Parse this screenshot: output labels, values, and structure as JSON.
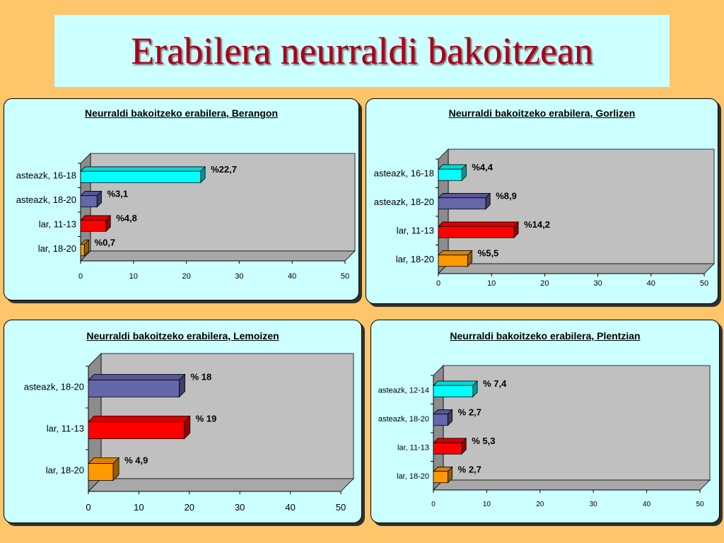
{
  "page": {
    "title": "Erabilera neurraldi bakoitzean"
  },
  "colors": {
    "cyan": "#00ffff",
    "blue": "#6666aa",
    "red": "#ff0000",
    "orange": "#ff9900",
    "panel_bg": "#ccffff",
    "plot_bg": "#c0c0c0",
    "background": "#ffc56a",
    "title": "#a8001c"
  },
  "chart_data": [
    {
      "type": "bar",
      "orientation": "horizontal",
      "title": "Neurraldi bakoitzeko erabilera, Berangon",
      "categories": [
        "asteazk, 16-18",
        "asteazk, 18-20",
        "lar, 11-13",
        "lar, 18-20"
      ],
      "values": [
        22.7,
        3.1,
        4.8,
        0.7
      ],
      "data_labels": [
        "%22,7",
        "%3,1",
        "%4,8",
        "%0,7"
      ],
      "bar_colors": [
        "cyan",
        "blue",
        "red",
        "orange"
      ],
      "xlim": [
        0,
        50
      ],
      "x_ticks": [
        "0",
        "10",
        "20",
        "30",
        "40",
        "50"
      ],
      "grid": false,
      "legend": "none"
    },
    {
      "type": "bar",
      "orientation": "horizontal",
      "title": "Neurraldi bakoitzeko erabilera, Gorlizen",
      "categories": [
        "asteazk, 16-18",
        "asteazk, 18-20",
        "lar, 11-13",
        "lar, 18-20"
      ],
      "values": [
        4.4,
        8.9,
        14.2,
        5.5
      ],
      "data_labels": [
        "%4,4",
        "%8,9",
        "%14,2",
        "%5,5"
      ],
      "bar_colors": [
        "cyan",
        "blue",
        "red",
        "orange"
      ],
      "xlim": [
        0,
        50
      ],
      "x_ticks": [
        "0",
        "10",
        "20",
        "30",
        "40",
        "50"
      ],
      "grid": false,
      "legend": "none"
    },
    {
      "type": "bar",
      "orientation": "horizontal",
      "title": "Neurraldi bakoitzeko erabilera, Lemoizen",
      "categories": [
        "asteazk, 18-20",
        "lar, 11-13",
        "lar, 18-20"
      ],
      "values": [
        18,
        19,
        4.9
      ],
      "data_labels": [
        "% 18",
        "% 19",
        "% 4,9"
      ],
      "bar_colors": [
        "blue",
        "red",
        "orange"
      ],
      "xlim": [
        0,
        50
      ],
      "x_ticks": [
        "0",
        "10",
        "20",
        "30",
        "40",
        "50"
      ],
      "grid": false,
      "legend": "none"
    },
    {
      "type": "bar",
      "orientation": "horizontal",
      "title": "Neurraldi bakoitzeko erabilera, Plentzian",
      "categories": [
        "asteazk, 12-14",
        "asteazk, 18-20",
        "lar, 11-13",
        "lar, 18-20"
      ],
      "values": [
        7.4,
        2.7,
        5.3,
        2.7
      ],
      "data_labels": [
        "% 7,4",
        "% 2,7",
        "% 5,3",
        "% 2,7"
      ],
      "bar_colors": [
        "cyan",
        "blue",
        "red",
        "orange"
      ],
      "xlim": [
        0,
        50
      ],
      "x_ticks": [
        "0",
        "10",
        "20",
        "30",
        "40",
        "50"
      ],
      "grid": false,
      "legend": "none"
    }
  ]
}
